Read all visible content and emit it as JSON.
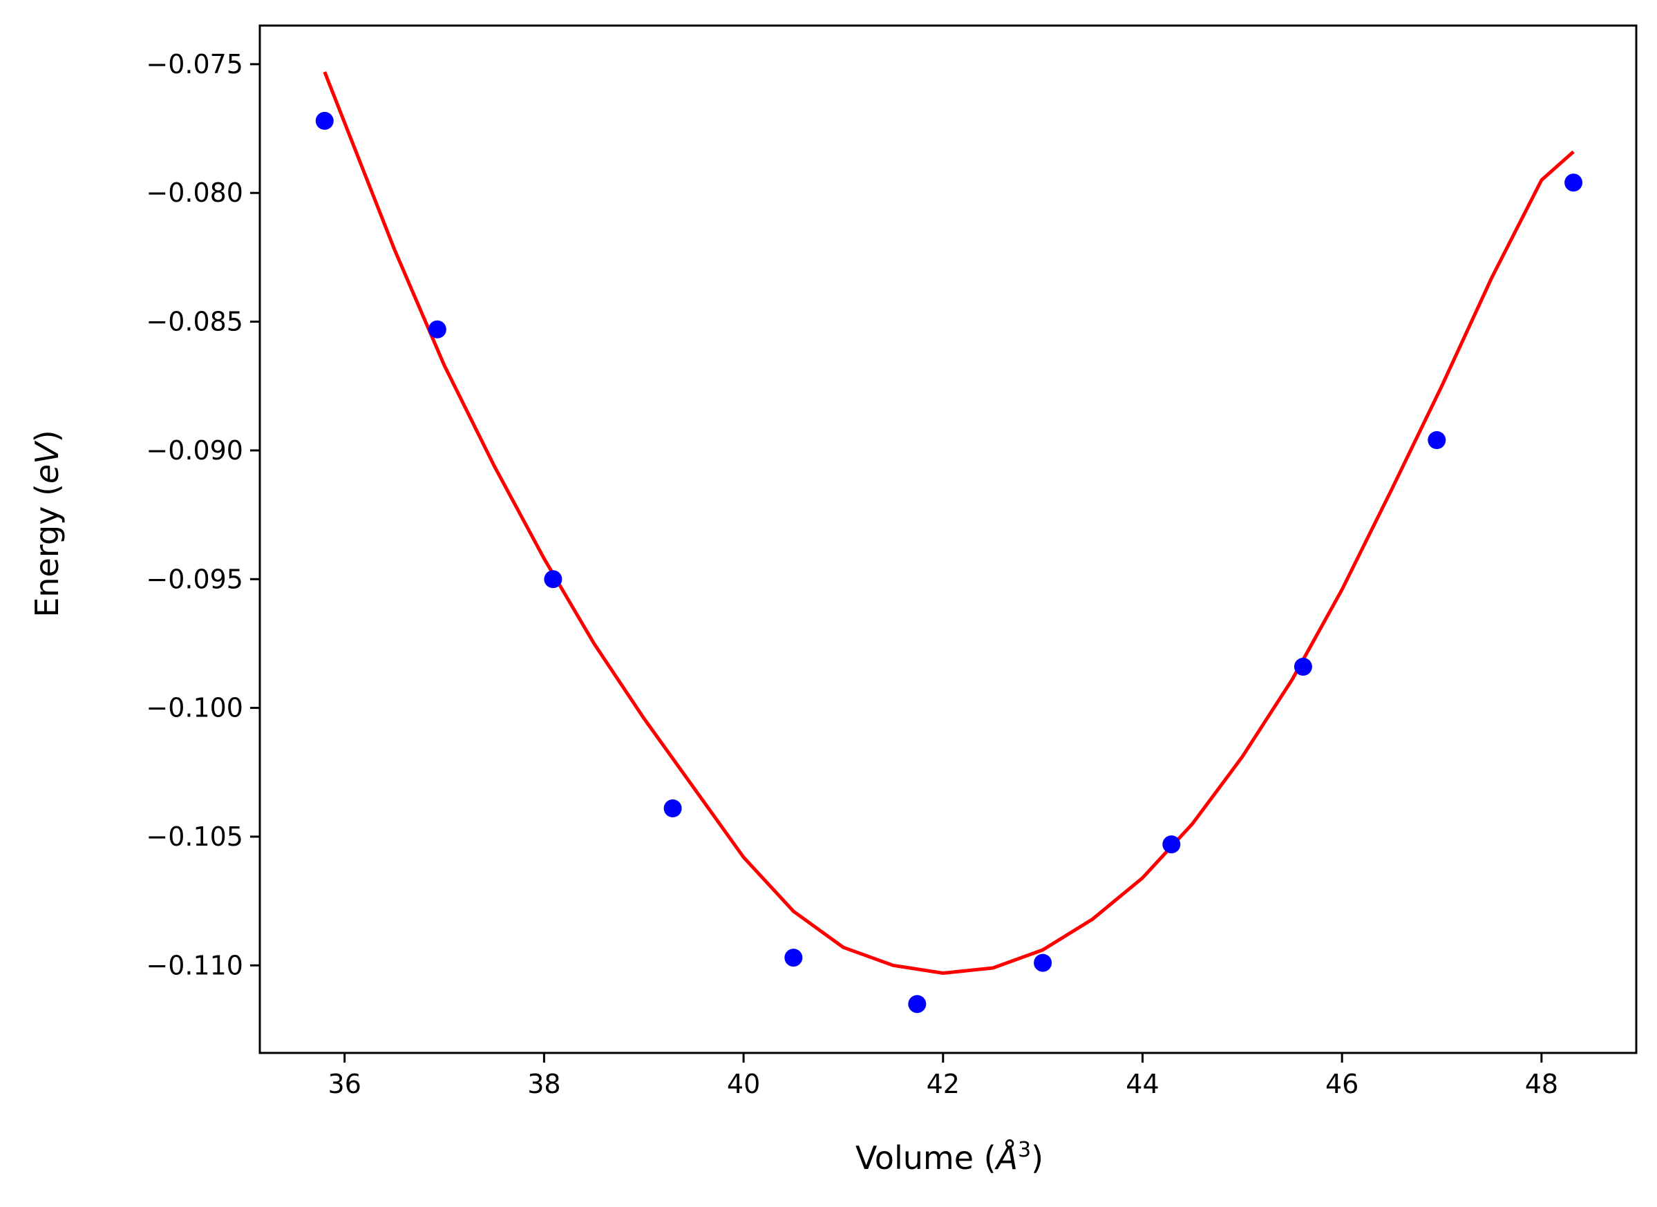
{
  "chart_data": {
    "type": "scatter",
    "title": "",
    "xlabel_prefix": "Volume (",
    "xlabel_unit": "Å",
    "xlabel_sup": "3",
    "xlabel_suffix": ")",
    "ylabel_prefix": "Energy (",
    "ylabel_unit": "eV",
    "ylabel_suffix": ")",
    "xlim": [
      35.15,
      48.95
    ],
    "ylim": [
      -0.1134,
      -0.0735
    ],
    "xticks": [
      36,
      38,
      40,
      42,
      44,
      46,
      48
    ],
    "xtick_labels": [
      "36",
      "38",
      "40",
      "42",
      "44",
      "46",
      "48"
    ],
    "yticks": [
      -0.075,
      -0.08,
      -0.085,
      -0.09,
      -0.095,
      -0.1,
      -0.105,
      -0.11
    ],
    "ytick_labels": [
      "−0.075",
      "−0.080",
      "−0.085",
      "−0.090",
      "−0.095",
      "−0.100",
      "−0.105",
      "−0.110"
    ],
    "grid": false,
    "series": [
      {
        "kind": "scatter",
        "color": "#0000ff",
        "x": [
          35.8,
          36.93,
          38.09,
          39.29,
          40.5,
          41.74,
          43.0,
          44.29,
          45.61,
          46.95,
          48.32
        ],
        "y": [
          -0.0772,
          -0.0853,
          -0.095,
          -0.1039,
          -0.1097,
          -0.1115,
          -0.1099,
          -0.1053,
          -0.0984,
          -0.0896,
          -0.0796
        ]
      },
      {
        "kind": "line",
        "color": "#ff0000",
        "x": [
          35.8,
          36.5,
          37.0,
          37.5,
          38.0,
          38.5,
          39.0,
          39.5,
          40.0,
          40.5,
          41.0,
          41.5,
          42.0,
          42.5,
          43.0,
          43.5,
          44.0,
          44.5,
          45.0,
          45.5,
          46.0,
          46.5,
          47.0,
          47.5,
          48.0,
          48.32
        ],
        "y": [
          -0.0753,
          -0.0822,
          -0.0867,
          -0.0906,
          -0.0942,
          -0.0975,
          -0.1004,
          -0.1031,
          -0.1058,
          -0.1079,
          -0.1093,
          -0.11,
          -0.1103,
          -0.1101,
          -0.1094,
          -0.1082,
          -0.1066,
          -0.1045,
          -0.1019,
          -0.0989,
          -0.0954,
          -0.0915,
          -0.0875,
          -0.0833,
          -0.0795,
          -0.0784
        ]
      }
    ]
  }
}
